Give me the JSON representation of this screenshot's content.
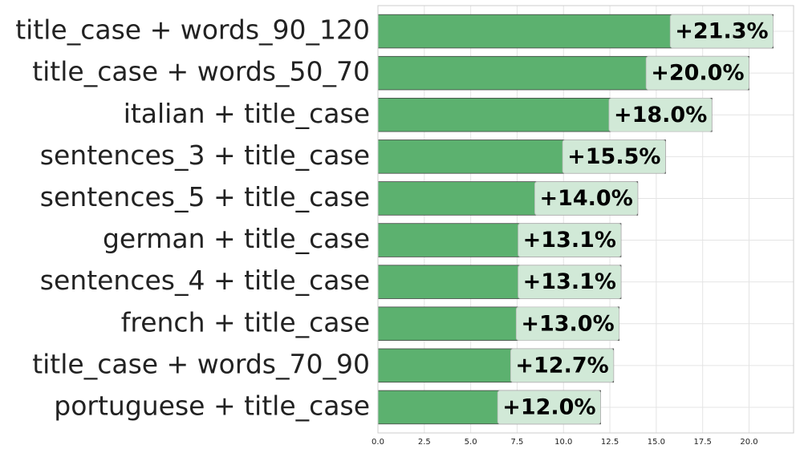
{
  "chart_data": {
    "type": "barh",
    "categories": [
      "title_case + words_90_120",
      "title_case + words_50_70",
      "italian + title_case",
      "sentences_3 + title_case",
      "sentences_5 + title_case",
      "german + title_case",
      "sentences_4 + title_case",
      "french + title_case",
      "title_case + words_70_90",
      "portuguese + title_case"
    ],
    "values": [
      21.3,
      20.0,
      18.0,
      15.5,
      14.0,
      13.1,
      13.1,
      13.0,
      12.7,
      12.0
    ],
    "value_labels": [
      "+21.3%",
      "+20.0%",
      "+18.0%",
      "+15.5%",
      "+14.0%",
      "+13.1%",
      "+13.1%",
      "+13.0%",
      "+12.7%",
      "+12.0%"
    ],
    "color": "#5cb16f",
    "xlim": [
      0,
      22.4
    ],
    "xticks": [
      {
        "value": 0,
        "label": "0.0"
      },
      2.5,
      {
        "value": 5,
        "label": "5.0"
      },
      7.5,
      {
        "value": 10,
        "label": "10.0"
      },
      12.5,
      {
        "value": 15,
        "label": "15.0"
      },
      17.5,
      {
        "value": 20,
        "label": "20.0"
      }
    ],
    "grid": true
  }
}
